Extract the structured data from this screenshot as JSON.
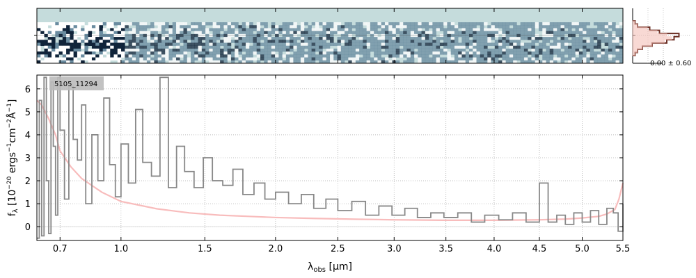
{
  "figure": {
    "object_id": "5105_11294"
  },
  "chart_data": [
    {
      "panel": "2d-spectrum",
      "type": "heatmap",
      "description_values": "spatial profile (rows) vs wavelength (columns); trace centred on middle rows, noisier at blue end",
      "x": [
        0.6,
        5.5
      ],
      "colors": {
        "background": "#c5dcdc",
        "dark": "#10243a",
        "mid": "#6a8ca0",
        "light": "#ffffff"
      }
    },
    {
      "panel": "profile",
      "type": "line",
      "annotation": "-0.00 ± 0.60",
      "series": [
        {
          "color": "#6b2f24",
          "values": [
            0.05,
            0.1,
            0.35,
            0.55,
            0.95,
            0.85,
            0.7,
            0.4,
            0.2,
            0.1,
            0.05
          ]
        },
        {
          "color": "#f4c0b8",
          "values": [
            0.05,
            0.1,
            0.3,
            0.5,
            0.7,
            0.8,
            0.65,
            0.4,
            0.2,
            0.1,
            0.05
          ]
        }
      ]
    },
    {
      "panel": "1d-spectrum",
      "type": "line",
      "ylabel": "f_λ [10^−20 ergs^−1cm^−2Å^−1]",
      "xlabel": "λ_obs [μm]",
      "xlim": [
        0.6,
        5.5
      ],
      "ylim": [
        -0.6,
        6.6
      ],
      "x_transform": "sqrt",
      "xticks": [
        0.7,
        1.0,
        1.5,
        2.0,
        2.5,
        3.0,
        3.5,
        4.0,
        4.5,
        5.0,
        5.5
      ],
      "xtick_labels": [
        "0.7",
        "1.0",
        "1.5",
        "2.0",
        "2.5",
        "3.0",
        "3.5",
        "4.0",
        "4.5",
        "5.0",
        "5.5"
      ],
      "yticks": [
        0,
        1,
        2,
        3,
        4,
        5,
        6
      ],
      "ytick_labels": [
        "0",
        "1",
        "2",
        "3",
        "4",
        "5",
        "6"
      ],
      "grid": true,
      "series": [
        {
          "color": "#f8bcbc",
          "role": "error",
          "x": [
            0.6,
            0.62,
            0.65,
            0.68,
            0.7,
            0.75,
            0.8,
            0.9,
            1.0,
            1.2,
            1.4,
            1.6,
            1.8,
            2.0,
            2.3,
            2.6,
            3.0,
            3.5,
            4.0,
            4.5,
            4.8,
            5.0,
            5.2,
            5.3,
            5.4,
            5.45,
            5.5
          ],
          "y": [
            5.5,
            5.3,
            4.7,
            4.0,
            3.3,
            2.6,
            2.1,
            1.5,
            1.1,
            0.78,
            0.6,
            0.5,
            0.45,
            0.4,
            0.36,
            0.33,
            0.3,
            0.28,
            0.28,
            0.3,
            0.33,
            0.38,
            0.45,
            0.55,
            0.75,
            1.2,
            1.9
          ]
        },
        {
          "color": "#888888",
          "role": "flux",
          "x": [
            0.6,
            0.61,
            0.62,
            0.63,
            0.64,
            0.65,
            0.66,
            0.67,
            0.68,
            0.69,
            0.7,
            0.72,
            0.74,
            0.76,
            0.78,
            0.8,
            0.82,
            0.85,
            0.88,
            0.91,
            0.94,
            0.97,
            1.0,
            1.04,
            1.08,
            1.12,
            1.17,
            1.22,
            1.27,
            1.32,
            1.37,
            1.43,
            1.49,
            1.55,
            1.62,
            1.69,
            1.76,
            1.84,
            1.92,
            2.0,
            2.1,
            2.2,
            2.3,
            2.4,
            2.5,
            2.62,
            2.74,
            2.86,
            2.98,
            3.1,
            3.22,
            3.35,
            3.48,
            3.62,
            3.76,
            3.9,
            4.05,
            4.2,
            4.35,
            4.5,
            4.6,
            4.7,
            4.8,
            4.9,
            5.0,
            5.1,
            5.2,
            5.3,
            5.38,
            5.44,
            5.5
          ],
          "y": [
            -0.5,
            5.5,
            -0.4,
            6.5,
            2.0,
            -0.3,
            6.3,
            3.5,
            0.5,
            6.5,
            4.2,
            1.2,
            6.1,
            3.8,
            2.9,
            5.3,
            1.0,
            4.0,
            2.0,
            5.6,
            2.7,
            1.3,
            3.6,
            1.9,
            5.1,
            2.8,
            2.2,
            6.5,
            1.7,
            3.5,
            2.4,
            1.7,
            3.0,
            2.0,
            1.8,
            2.5,
            1.4,
            1.9,
            1.2,
            1.5,
            1.0,
            1.4,
            0.8,
            1.2,
            0.7,
            1.1,
            0.5,
            0.9,
            0.5,
            0.8,
            0.4,
            0.6,
            0.4,
            0.6,
            0.2,
            0.5,
            0.3,
            0.6,
            0.2,
            1.9,
            0.2,
            0.5,
            0.1,
            0.6,
            0.2,
            0.7,
            0.1,
            0.8,
            0.6,
            -0.2,
            1.0
          ]
        }
      ]
    }
  ]
}
